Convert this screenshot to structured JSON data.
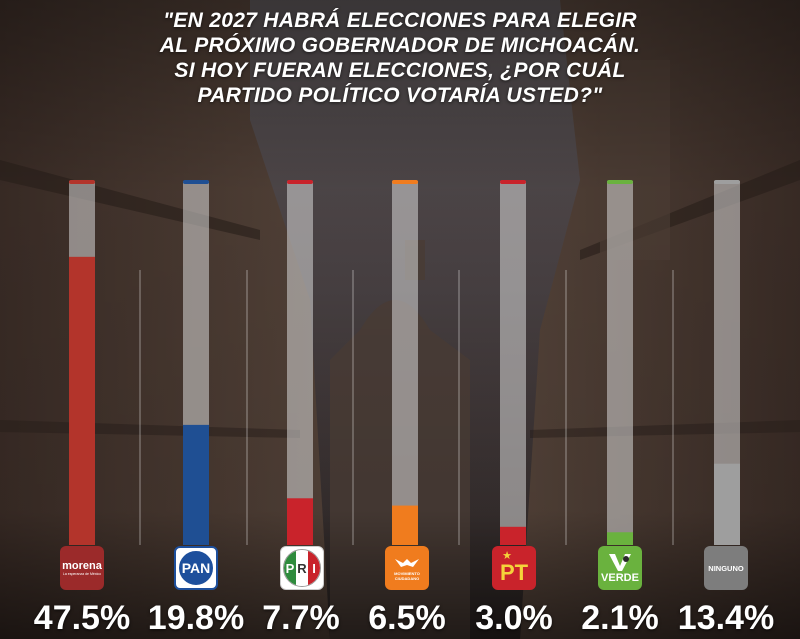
{
  "title": "\"EN 2027 HABRÁ ELECCIONES PARA ELEGIR\nAL PRÓXIMO GOBERNADOR DE MICHOACÁN.\nSI HOY FUERAN ELECCIONES, ¿POR CUÁL\nPARTIDO POLÍTICO VOTARÍA USTED?\"",
  "chart_data": {
    "type": "bar",
    "title": "\"EN 2027 HABRÁ ELECCIONES PARA ELEGIR AL PRÓXIMO GOBERNADOR DE MICHOACÁN. SI HOY FUERAN ELECCIONES, ¿POR CUÁL PARTIDO POLÍTICO VOTARÍA USTED?\"",
    "categories": [
      "morena",
      "PAN",
      "PRI",
      "MOVIMIENTO CIUDADANO",
      "PT",
      "VERDE",
      "NINGUNO"
    ],
    "values": [
      47.5,
      19.8,
      7.7,
      6.5,
      3.0,
      2.1,
      13.4
    ],
    "value_labels": [
      "47.5%",
      "19.8%",
      "7.7%",
      "6.5%",
      "3.0%",
      "2.1%",
      "13.4%"
    ],
    "ylim": [
      0,
      60
    ],
    "grid": false,
    "legend": "none",
    "colors": [
      "#b3342b",
      "#1f4f93",
      "#c9232b",
      "#f07c1e",
      "#c9232b",
      "#6ab23e",
      "#9e9e9e"
    ]
  },
  "logos": {
    "morena": {
      "label": "morena",
      "sublabel": "La esperanza de México",
      "color": "#9b2a2a"
    },
    "pan": {
      "label": "PAN",
      "color": "#1d4f9c"
    },
    "pri": {
      "letters": [
        "P",
        "R",
        "I"
      ],
      "colors": [
        "#2e8b3d",
        "#ffffff",
        "#c9232b"
      ]
    },
    "mc": {
      "label": "MOVIMIENTO CIUDADANO",
      "color": "#f07c1e"
    },
    "pt": {
      "label": "PT",
      "color": "#c9232b"
    },
    "verde": {
      "label": "VERDE",
      "color": "#6ab23e"
    },
    "ninguno": {
      "label": "NINGUNO",
      "color": "#7d7d7d"
    }
  }
}
